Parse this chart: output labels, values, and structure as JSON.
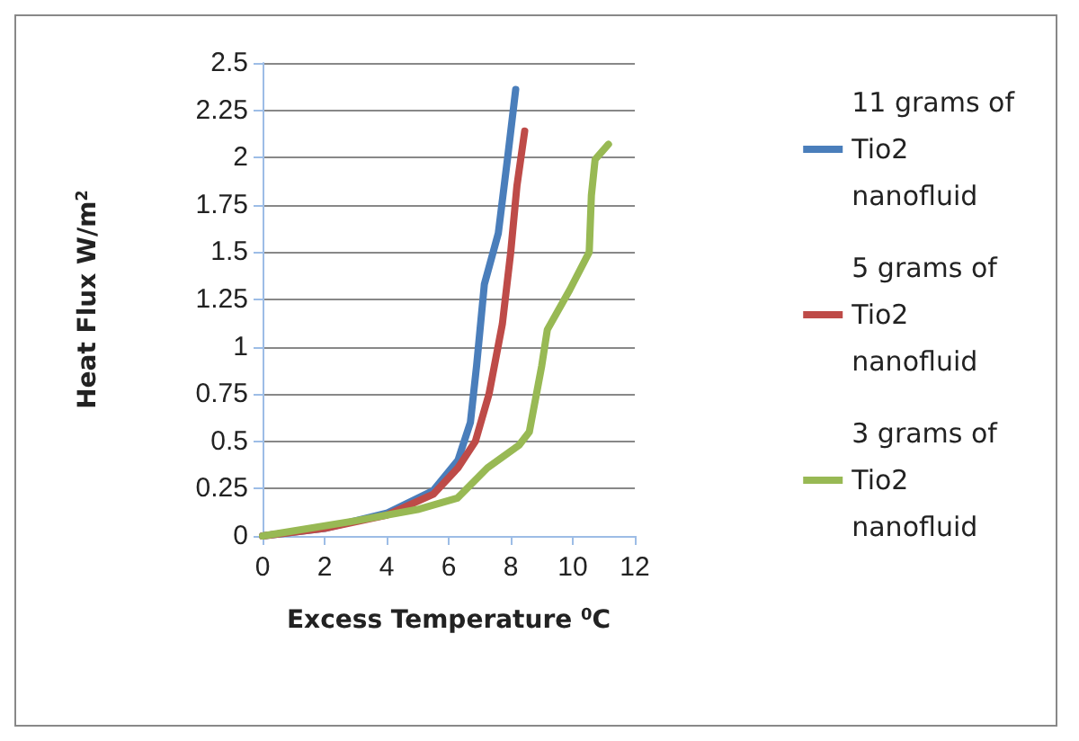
{
  "chart_data": {
    "type": "line",
    "xlabel": "Excess Temperature $^{0}$C",
    "ylabel": "Heat Flux W/m$^{2}$",
    "xlim": [
      0,
      12
    ],
    "xticks": [
      0,
      2,
      4,
      6,
      8,
      10,
      12
    ],
    "ylim": [
      0,
      2.5
    ],
    "yticks": [
      0,
      0.25,
      0.5,
      0.75,
      1,
      1.25,
      1.5,
      1.75,
      2,
      2.25,
      2.5
    ],
    "grid": "y",
    "legend": "right",
    "marker": "none",
    "line_style": "solid",
    "series": [
      {
        "name": "11 grams of Tio2 nanofluid",
        "color": "#4a7ebb",
        "x": [
          0,
          2,
          4,
          5.5,
          6.3,
          6.7,
          6.9,
          7.15,
          7.6,
          7.9,
          8.16
        ],
        "values": [
          0,
          0.04,
          0.12,
          0.24,
          0.4,
          0.6,
          0.9,
          1.33,
          1.6,
          2.0,
          2.36
        ]
      },
      {
        "name": "5 grams of Tio2 nanofluid",
        "color": "#be4b48",
        "x": [
          0,
          2,
          4,
          5.5,
          6.3,
          6.86,
          7.3,
          7.73,
          8.0,
          8.2,
          8.45
        ],
        "values": [
          0,
          0.04,
          0.11,
          0.22,
          0.36,
          0.5,
          0.75,
          1.12,
          1.5,
          1.85,
          2.14
        ]
      },
      {
        "name": "3 grams of Tio2 nanofluid",
        "color": "#98b954",
        "x": [
          0,
          3,
          5,
          6.28,
          7.25,
          8.27,
          8.6,
          9.0,
          9.18,
          9.9,
          10.53,
          10.6,
          10.72,
          11.15
        ],
        "values": [
          0,
          0.08,
          0.14,
          0.2,
          0.36,
          0.48,
          0.55,
          0.9,
          1.09,
          1.3,
          1.5,
          1.8,
          1.99,
          2.07
        ]
      }
    ]
  }
}
